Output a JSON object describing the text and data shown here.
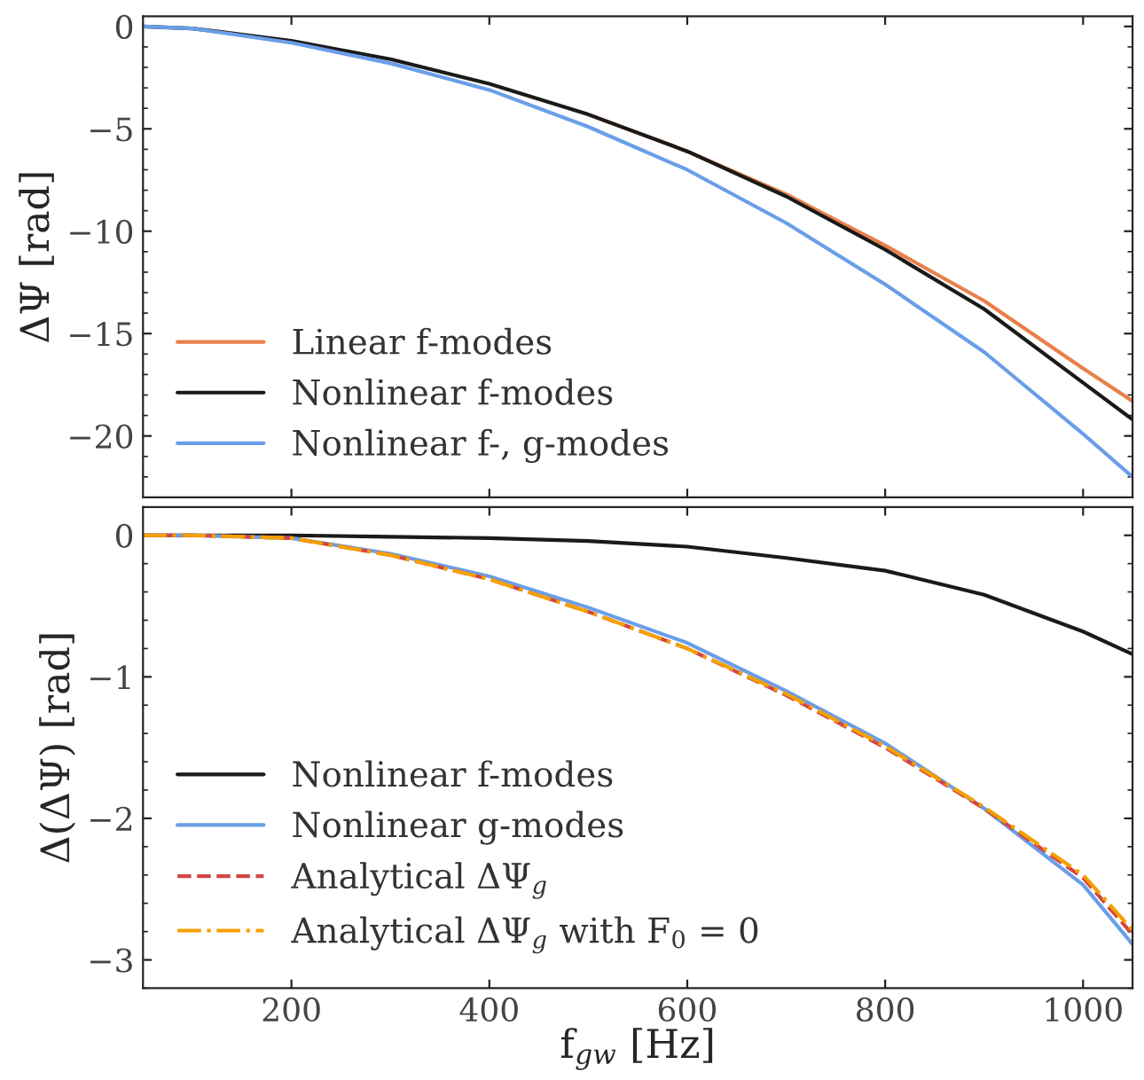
{
  "chart_data": [
    {
      "type": "line",
      "ylabel": "ΔΨ [rad]",
      "x": [
        50,
        100,
        200,
        300,
        400,
        500,
        600,
        700,
        800,
        900,
        1000,
        1050
      ],
      "xlim": [
        50,
        1050
      ],
      "xticks": [
        200,
        400,
        600,
        800,
        1000
      ],
      "ylim": [
        -23,
        0.5
      ],
      "yticks": [
        {
          "value": -20,
          "label": "−20"
        },
        {
          "value": -15,
          "label": "−15"
        },
        {
          "value": -10,
          "label": "−10"
        },
        {
          "value": -5,
          "label": "−5"
        },
        0
      ],
      "tick_labels": "y",
      "grid": false,
      "legend": "bottom left",
      "marker": "none",
      "series": [
        {
          "name": "Linear f-modes",
          "color": "#e8804a",
          "line_style": "solid",
          "values": [
            null,
            null,
            null,
            null,
            null,
            -4.3,
            -6.1,
            -8.2,
            -10.7,
            -13.4,
            -16.7,
            -18.3
          ]
        },
        {
          "name": "Nonlinear f-modes",
          "color": "#1a1a1a",
          "line_style": "solid",
          "values": [
            0,
            -0.1,
            -0.7,
            -1.6,
            -2.8,
            -4.3,
            -6.1,
            -8.3,
            -10.9,
            -13.8,
            -17.4,
            -19.2
          ]
        },
        {
          "name": "Nonlinear f-, g-modes",
          "color": "#6a9ee8",
          "line_style": "solid",
          "values": [
            0,
            -0.1,
            -0.8,
            -1.8,
            -3.1,
            -4.9,
            -7.0,
            -9.6,
            -12.6,
            -15.9,
            -19.9,
            -22.0
          ]
        }
      ]
    },
    {
      "type": "line",
      "xlabel": "f$_{gw}$ [Hz]",
      "ylabel": "Δ(ΔΨ) [rad]",
      "x": [
        50,
        100,
        200,
        300,
        400,
        500,
        600,
        700,
        800,
        900,
        1000,
        1050
      ],
      "xlim": [
        50,
        1050
      ],
      "xticks": [
        200,
        400,
        600,
        800,
        1000
      ],
      "ylim": [
        -3.2,
        0.2
      ],
      "yticks": [
        {
          "value": -3,
          "label": "−3"
        },
        {
          "value": -2,
          "label": "−2"
        },
        {
          "value": -1,
          "label": "−1"
        },
        0
      ],
      "grid": false,
      "legend": "bottom left",
      "marker": "none",
      "series": [
        {
          "name": "Nonlinear f-modes",
          "color": "#1a1a1a",
          "line_style": "solid",
          "values": [
            0,
            0,
            0,
            -0.01,
            -0.02,
            -0.04,
            -0.08,
            -0.16,
            -0.25,
            -0.42,
            -0.68,
            -0.84
          ]
        },
        {
          "name": "Nonlinear g-modes",
          "color": "#6a9ee8",
          "line_style": "solid",
          "values": [
            0,
            0,
            -0.02,
            -0.13,
            -0.29,
            -0.51,
            -0.76,
            -1.1,
            -1.47,
            -1.93,
            -2.47,
            -2.89
          ]
        },
        {
          "name": "Analytical ΔΨ$_{g}$",
          "color": "#d24545",
          "line_style": "dashed",
          "values": [
            0,
            0,
            -0.02,
            -0.14,
            -0.31,
            -0.54,
            -0.8,
            -1.13,
            -1.5,
            -1.93,
            -2.42,
            -2.82
          ]
        },
        {
          "name": "Analytical ΔΨ$_{g}$ with F$_{0}$ = 0",
          "color": "#f5a000",
          "line_style": "dashdot",
          "values": [
            0,
            0,
            -0.02,
            -0.14,
            -0.31,
            -0.54,
            -0.8,
            -1.12,
            -1.49,
            -1.92,
            -2.4,
            -2.79
          ]
        }
      ]
    }
  ]
}
